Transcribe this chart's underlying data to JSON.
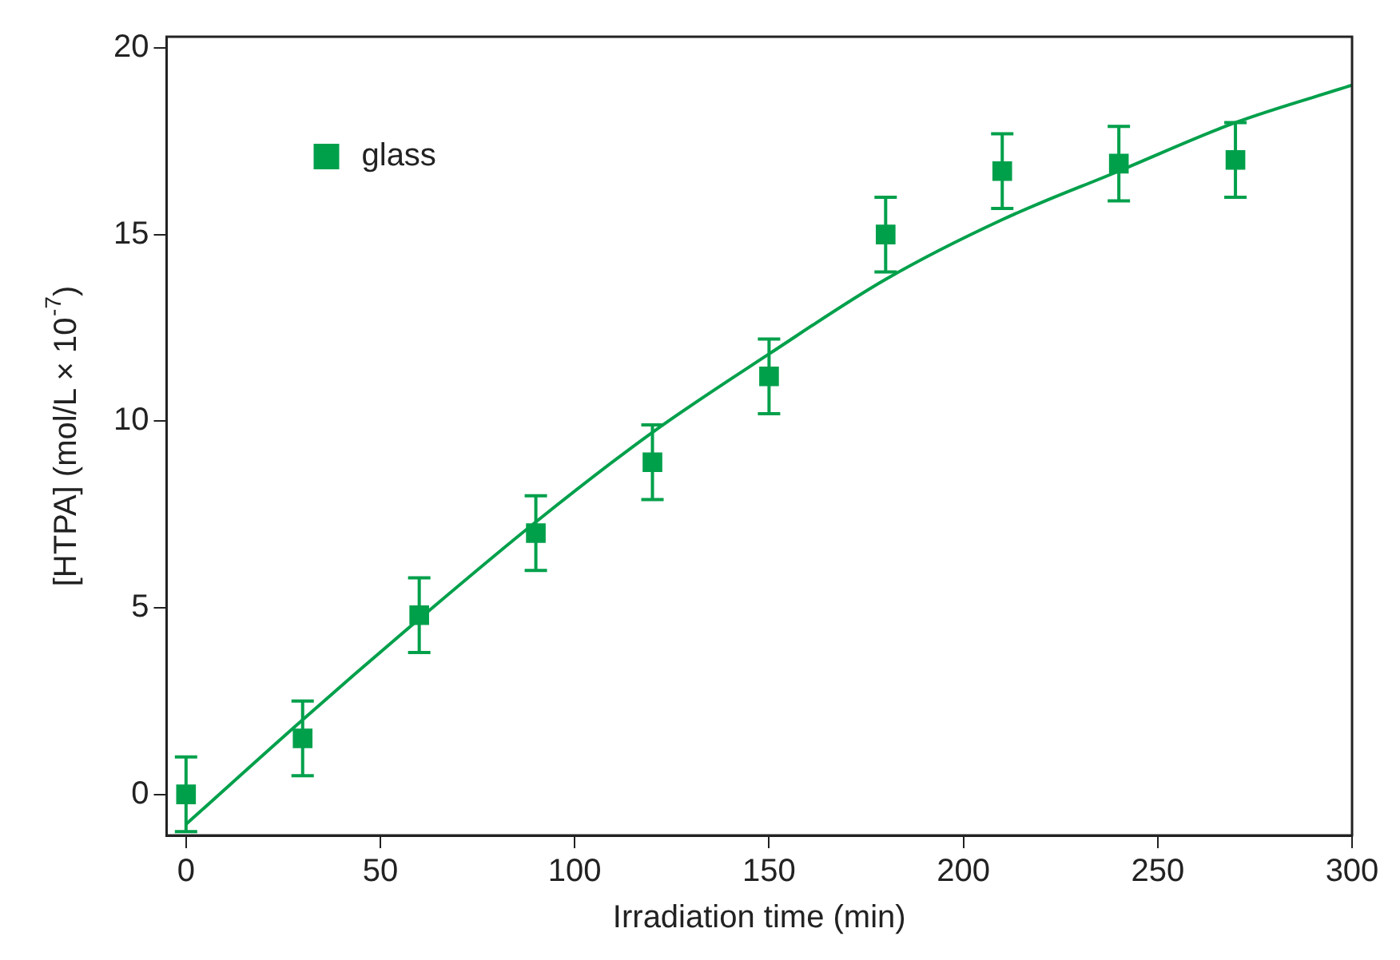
{
  "chart_data": {
    "type": "scatter",
    "xlabel": "Irradiation time (min)",
    "ylabel": "[HTPA] (mol/L × 10$^{-7}$)",
    "xlim": [
      -5,
      300
    ],
    "ylim": [
      -1.1,
      20.3
    ],
    "xticks": [
      0,
      50,
      100,
      150,
      200,
      250,
      300
    ],
    "yticks": [
      0,
      5,
      10,
      15,
      20
    ],
    "grid": false,
    "legend": "top left",
    "series": [
      {
        "name": "glass",
        "type": "scatter",
        "marker": "square",
        "color": "#00a04b",
        "x": [
          0,
          30,
          60,
          90,
          120,
          150,
          180,
          210,
          240,
          270
        ],
        "values": [
          0,
          1.5,
          4.8,
          7.0,
          8.9,
          11.2,
          15.0,
          16.7,
          16.9,
          17.0
        ],
        "errors": [
          1,
          1,
          1,
          1,
          1,
          1,
          1,
          1,
          1,
          1
        ]
      },
      {
        "type": "line",
        "marker": "none",
        "line_style": "solid",
        "color": "#00a04b",
        "x": [
          0,
          30,
          60,
          90,
          120,
          150,
          180,
          210,
          240,
          270,
          300
        ],
        "values": [
          -0.8,
          2.0,
          4.7,
          7.3,
          9.7,
          11.8,
          13.8,
          15.4,
          16.7,
          18.0,
          19.0
        ]
      }
    ]
  }
}
